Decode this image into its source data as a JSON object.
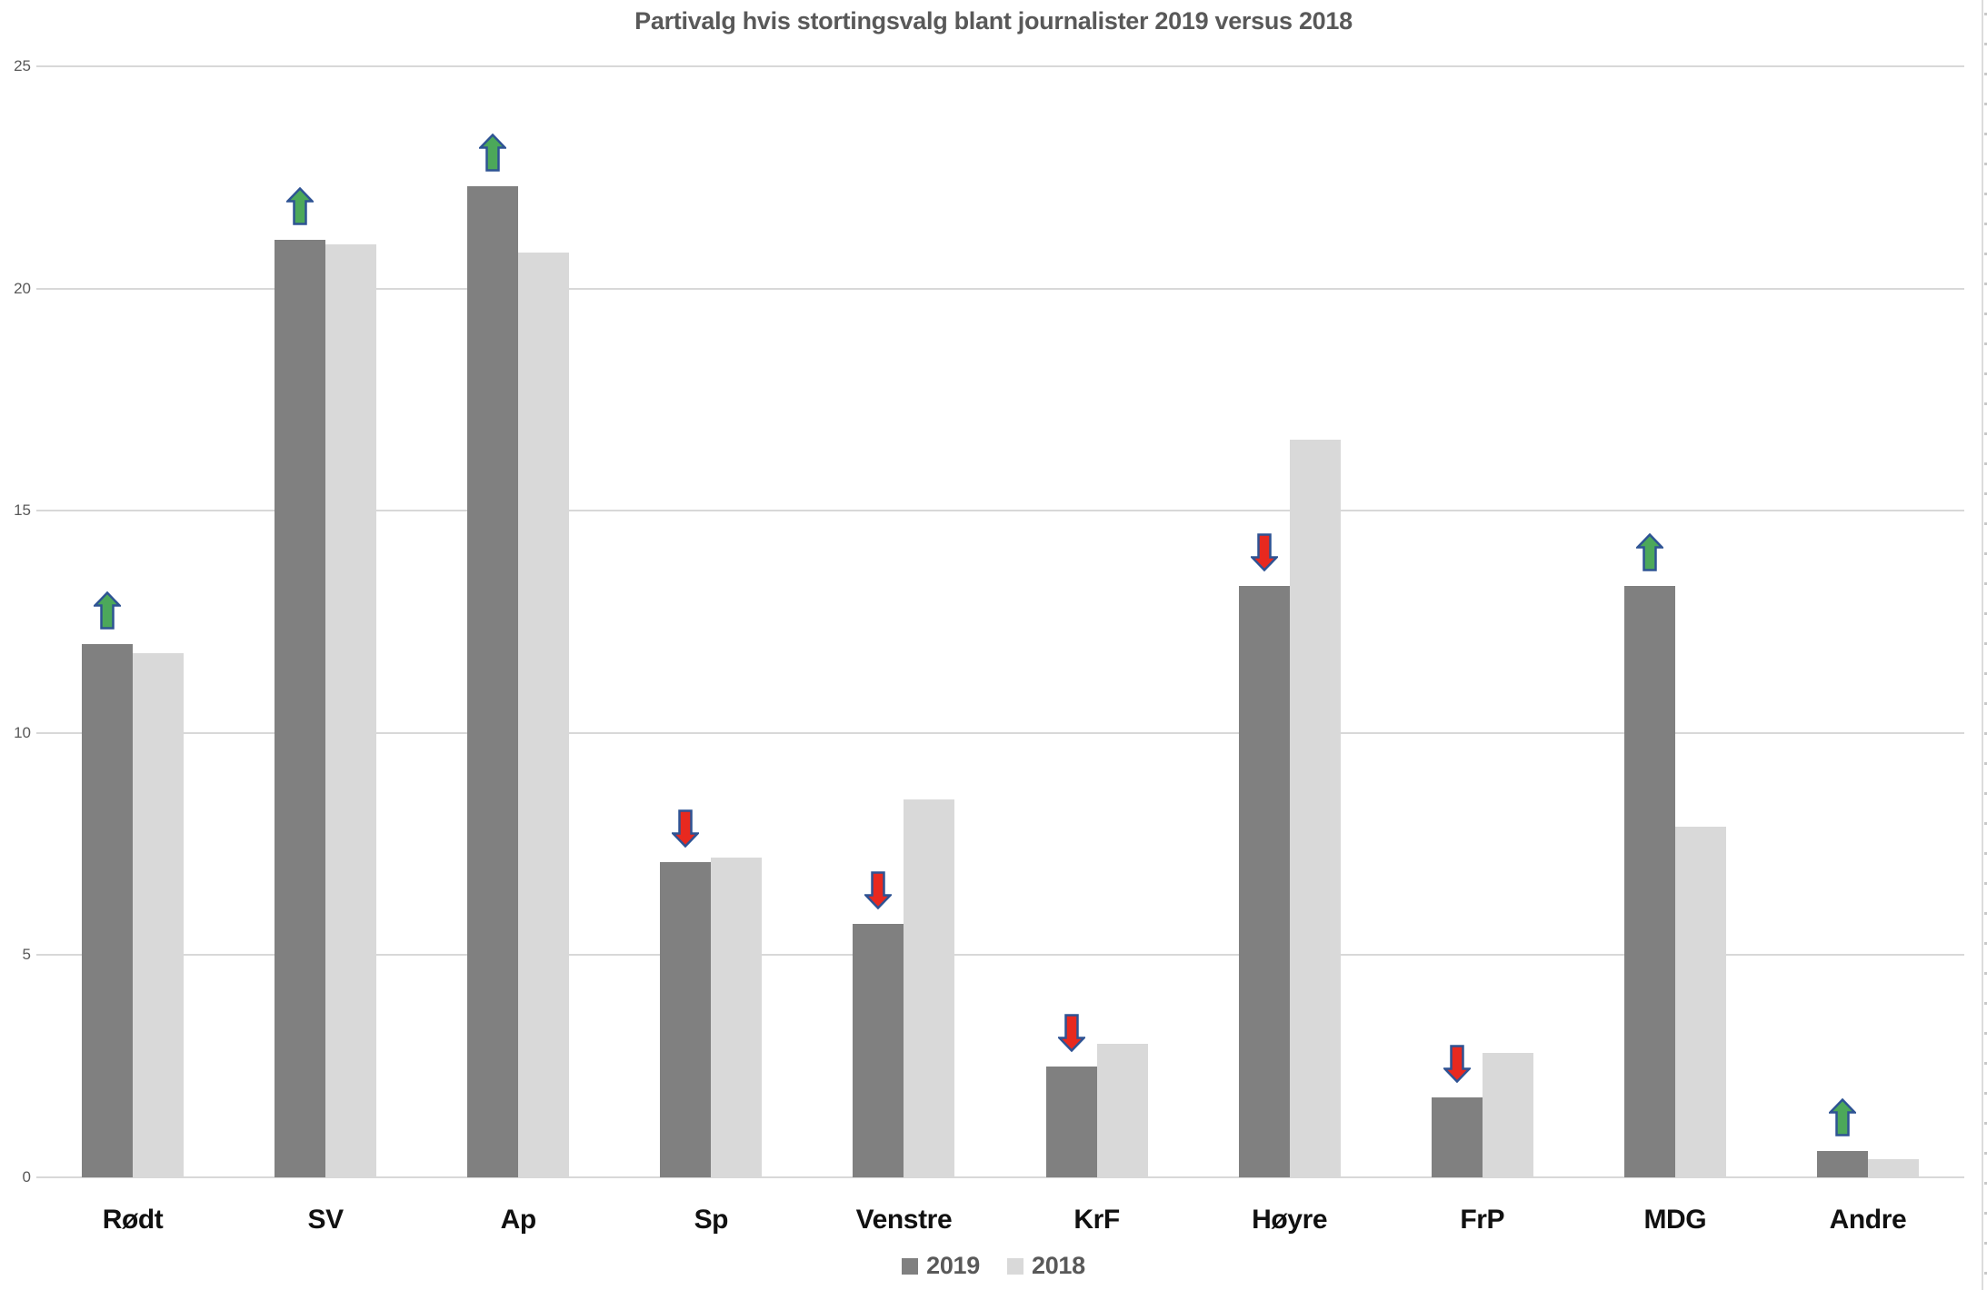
{
  "window": {
    "background": "#ffffff"
  },
  "chart_data": {
    "type": "bar",
    "title": "Partivalg hvis stortingsvalg blant journalister 2019 versus 2018",
    "categories": [
      "Rødt",
      "SV",
      "Ap",
      "Sp",
      "Venstre",
      "KrF",
      "Høyre",
      "FrP",
      "MDG",
      "Andre"
    ],
    "series": [
      {
        "name": "2019",
        "color": "#808080",
        "values": [
          12.0,
          21.1,
          22.3,
          7.1,
          5.7,
          2.5,
          13.3,
          1.8,
          13.3,
          0.6
        ]
      },
      {
        "name": "2018",
        "color": "#d9d9d9",
        "values": [
          11.8,
          21.0,
          20.8,
          7.2,
          8.5,
          3.0,
          16.6,
          2.8,
          7.9,
          0.4
        ]
      }
    ],
    "change_arrows": [
      "up",
      "up",
      "up",
      "down",
      "down",
      "down",
      "down",
      "down",
      "up",
      "up"
    ],
    "arrow_colors": {
      "up": "#4ca85a",
      "down": "#e8291f",
      "outline": "#2e5394"
    },
    "xlabel": "",
    "ylabel": "",
    "ylim": [
      0,
      25
    ],
    "yticks": [
      0,
      5,
      10,
      15,
      20,
      25
    ],
    "grid": true,
    "gridline_color": "#d8d8d8",
    "title_color": "#595959",
    "axis_label_color": "#595959",
    "category_label_color": "#111111",
    "legend_position": "bottom-center"
  }
}
